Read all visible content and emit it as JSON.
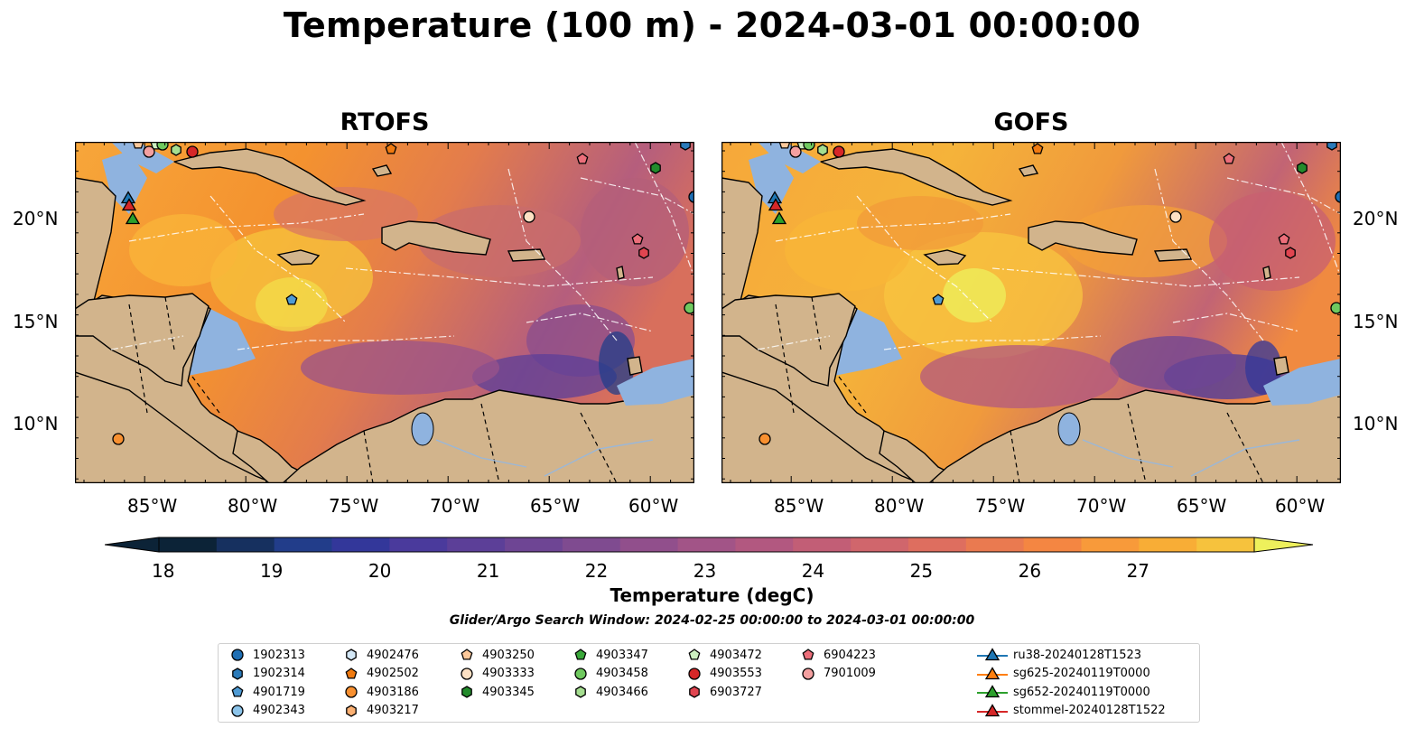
{
  "title": "Temperature (100 m) - 2024-03-01 00:00:00",
  "panels": [
    {
      "title": "RTOFS"
    },
    {
      "title": "GOFS"
    }
  ],
  "lat_ticks": [
    "20°N",
    "15°N",
    "10°N"
  ],
  "lon_ticks": [
    "85°W",
    "80°W",
    "75°W",
    "70°W",
    "65°W",
    "60°W"
  ],
  "colorbar": {
    "label": "Temperature (degC)",
    "ticks": [
      "18",
      "19",
      "20",
      "21",
      "22",
      "23",
      "24",
      "25",
      "26",
      "27"
    ],
    "colors": [
      "#0c2337",
      "#16305f",
      "#223d8a",
      "#33379a",
      "#4a3a9c",
      "#5c3f98",
      "#6e4594",
      "#7f4b90",
      "#914f8c",
      "#a25487",
      "#b25880",
      "#c25e76",
      "#d0666c",
      "#de6e5f",
      "#ea7a50",
      "#f48642",
      "#f89a3a",
      "#f8ad36",
      "#f6c23d",
      "#f1d54b",
      "#eef05c"
    ]
  },
  "search_window": "Glider/Argo Search Window: 2024-02-25 00:00:00 to 2024-03-01 00:00:00",
  "legend": [
    {
      "label": "1902313",
      "marker": "circle",
      "color": "#1f6fb4"
    },
    {
      "label": "1902314",
      "marker": "hexagon",
      "color": "#2b7bba"
    },
    {
      "label": "4901719",
      "marker": "pentagon",
      "color": "#4f9bd4"
    },
    {
      "label": "4902343",
      "marker": "circle",
      "color": "#8cc4ea"
    },
    {
      "label": "4902476",
      "marker": "hexagon",
      "color": "#d4e8f7"
    },
    {
      "label": "4902502",
      "marker": "pentagon",
      "color": "#f07a10"
    },
    {
      "label": "4903186",
      "marker": "circle",
      "color": "#f89030"
    },
    {
      "label": "4903217",
      "marker": "hexagon",
      "color": "#fbb072"
    },
    {
      "label": "4903250",
      "marker": "pentagon",
      "color": "#fcc89a"
    },
    {
      "label": "4903333",
      "marker": "circle",
      "color": "#fde1c4"
    },
    {
      "label": "4903345",
      "marker": "hexagon",
      "color": "#238b2c"
    },
    {
      "label": "4903347",
      "marker": "pentagon",
      "color": "#3aa83a"
    },
    {
      "label": "4903458",
      "marker": "circle",
      "color": "#6fc95f"
    },
    {
      "label": "4903466",
      "marker": "hexagon",
      "color": "#a5de90"
    },
    {
      "label": "4903472",
      "marker": "pentagon",
      "color": "#ccefc0"
    },
    {
      "label": "4903553",
      "marker": "circle",
      "color": "#d62728"
    },
    {
      "label": "6903727",
      "marker": "hexagon",
      "color": "#e04550"
    },
    {
      "label": "6904223",
      "marker": "pentagon",
      "color": "#ec6e7a"
    },
    {
      "label": "7901009",
      "marker": "circle",
      "color": "#f4a0a0"
    },
    {
      "label": "ru38-20240128T1523",
      "marker": "triangle-line",
      "color": "#1f77b4"
    },
    {
      "label": "sg625-20240119T0000",
      "marker": "triangle-line",
      "color": "#ff7f0e"
    },
    {
      "label": "sg652-20240119T0000",
      "marker": "triangle-line",
      "color": "#2ca02c"
    },
    {
      "label": "stommel-20240128T1522",
      "marker": "triangle-line",
      "color": "#d62728"
    }
  ]
}
